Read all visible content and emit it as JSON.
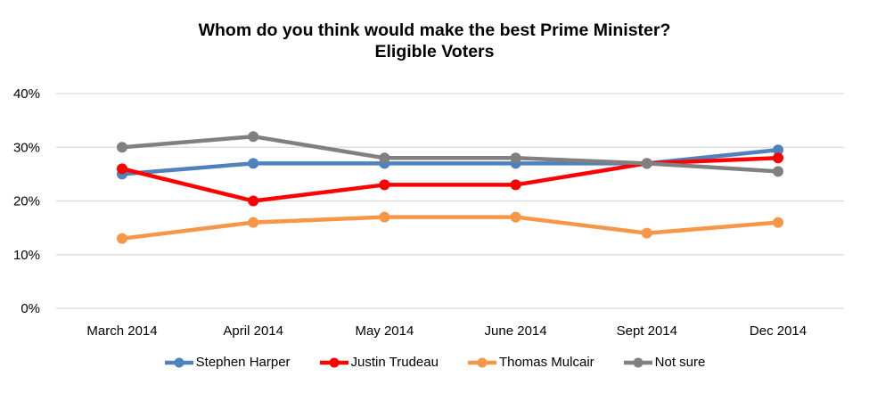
{
  "chart_data": {
    "type": "line",
    "title": "Whom do you think would make the best Prime Minister?",
    "subtitle": "Eligible Voters",
    "xlabel": "",
    "ylabel": "",
    "categories": [
      "March 2014",
      "April 2014",
      "May 2014",
      "June 2014",
      "Sept 2014",
      "Dec 2014"
    ],
    "y_ticks": [
      "0%",
      "10%",
      "20%",
      "30%",
      "40%"
    ],
    "y_tick_values": [
      0,
      10,
      20,
      30,
      40
    ],
    "ylim": [
      0,
      40
    ],
    "grid": true,
    "legend_position": "bottom",
    "series": [
      {
        "name": "Stephen Harper",
        "color": "#4F81BD",
        "values": [
          25,
          27,
          27,
          27,
          27,
          29.5
        ]
      },
      {
        "name": "Justin Trudeau",
        "color": "#FF0000",
        "values": [
          26,
          20,
          23,
          23,
          27,
          28
        ]
      },
      {
        "name": "Thomas Mulcair",
        "color": "#F79646",
        "values": [
          13,
          16,
          17,
          17,
          14,
          16
        ]
      },
      {
        "name": "Not sure",
        "color": "#808080",
        "values": [
          30,
          32,
          28,
          28,
          27,
          25.5
        ]
      }
    ]
  }
}
